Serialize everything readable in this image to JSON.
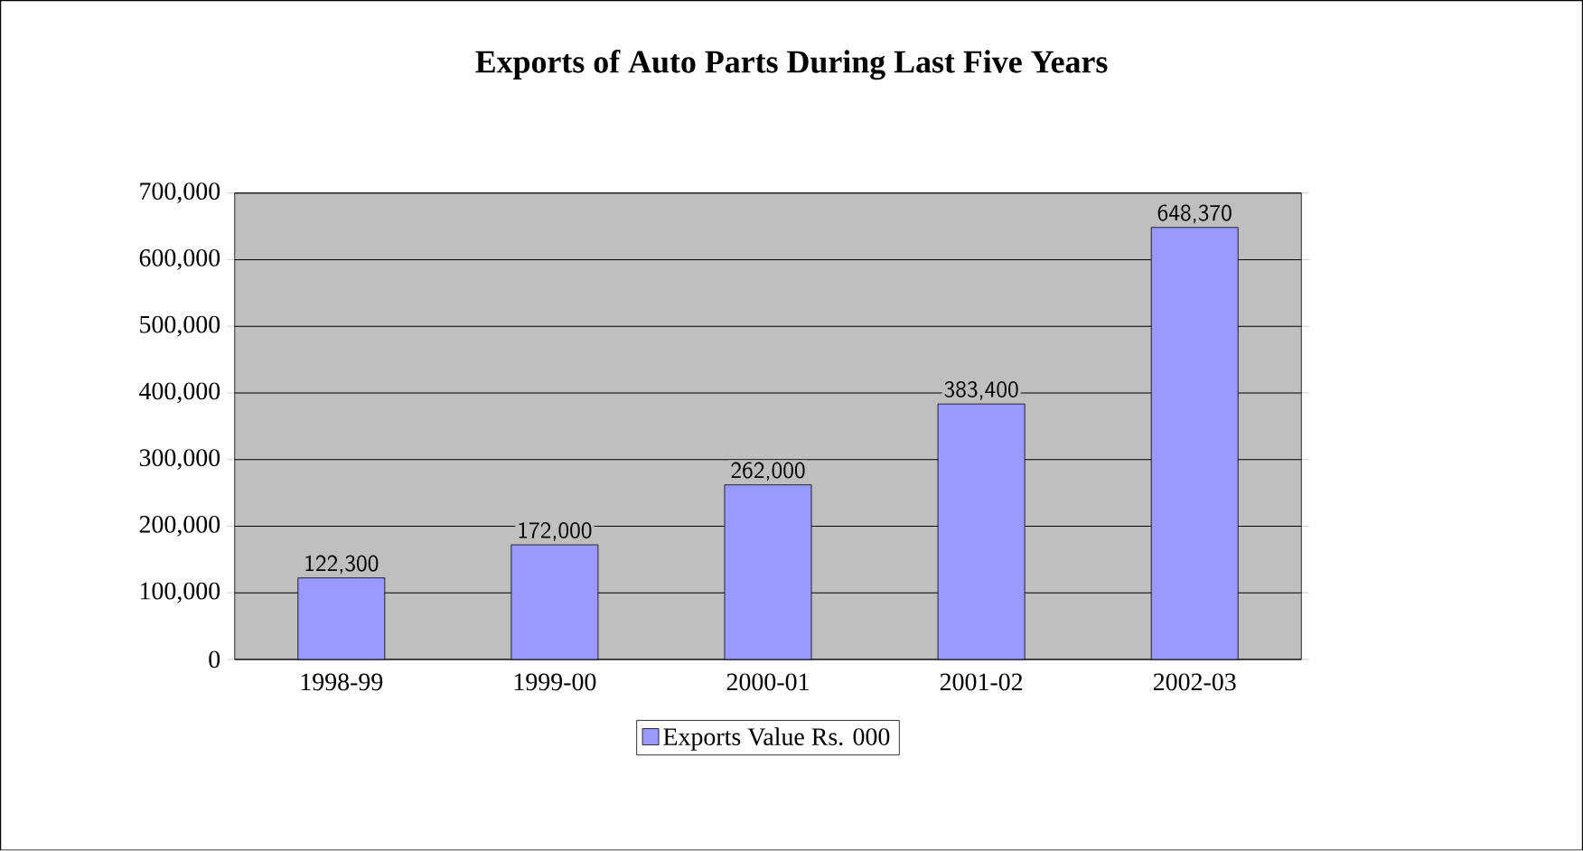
{
  "chart_data": {
    "type": "bar",
    "title": "Exports of Auto Parts During Last Five Years",
    "categories": [
      "1998-99",
      "1999-00",
      "2000-01",
      "2001-02",
      "2002-03"
    ],
    "series": [
      {
        "name": "Exports Value Rs. 000",
        "color": "#9999ff",
        "values": [
          122300,
          172000,
          262000,
          383400,
          648370
        ],
        "value_labels": [
          "122,300",
          "172,000",
          "262,000",
          "383,400",
          "648,370"
        ]
      }
    ],
    "ylim": [
      0,
      700000
    ],
    "yticks": [
      {
        "value": 0,
        "label": "0"
      },
      {
        "value": 100000,
        "label": "100,000"
      },
      {
        "value": 200000,
        "label": "200,000"
      },
      {
        "value": 300000,
        "label": "300,000"
      },
      {
        "value": 400000,
        "label": "400,000"
      },
      {
        "value": 500000,
        "label": "500,000"
      },
      {
        "value": 600000,
        "label": "600,000"
      },
      {
        "value": 700000,
        "label": "700,000"
      }
    ],
    "grid": "y",
    "legend": "bottom"
  }
}
